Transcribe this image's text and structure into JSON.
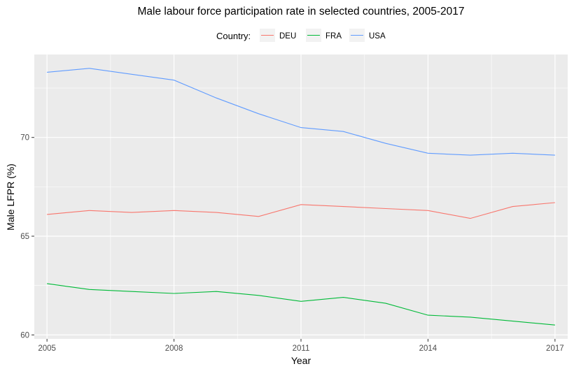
{
  "chart_data": {
    "type": "line",
    "title": "Male labour force participation rate in selected countries, 2005-2017",
    "xlabel": "Year",
    "ylabel": "Male LFPR (%)",
    "xlim": [
      2004.7,
      2017.3
    ],
    "ylim": [
      59.8,
      74.2
    ],
    "x_ticks": [
      2005,
      2008,
      2011,
      2014,
      2017
    ],
    "y_ticks": [
      60,
      65,
      70
    ],
    "grid": true,
    "legend": {
      "title": "Country:",
      "position": "top"
    },
    "x": [
      2005,
      2006,
      2007,
      2008,
      2009,
      2010,
      2011,
      2012,
      2013,
      2014,
      2015,
      2016,
      2017
    ],
    "series": [
      {
        "name": "DEU",
        "color": "#F8766D",
        "values": [
          66.1,
          66.3,
          66.2,
          66.3,
          66.2,
          66.0,
          66.6,
          66.5,
          66.4,
          66.3,
          65.9,
          66.5,
          66.7
        ]
      },
      {
        "name": "FRA",
        "color": "#00BA38",
        "values": [
          62.6,
          62.3,
          62.2,
          62.1,
          62.2,
          62.0,
          61.7,
          61.9,
          61.6,
          61.0,
          60.9,
          60.7,
          60.5
        ]
      },
      {
        "name": "USA",
        "color": "#619CFF",
        "values": [
          73.3,
          73.5,
          73.2,
          72.9,
          72.0,
          71.2,
          70.5,
          70.3,
          69.7,
          69.2,
          69.1,
          69.2,
          69.1
        ]
      }
    ]
  }
}
